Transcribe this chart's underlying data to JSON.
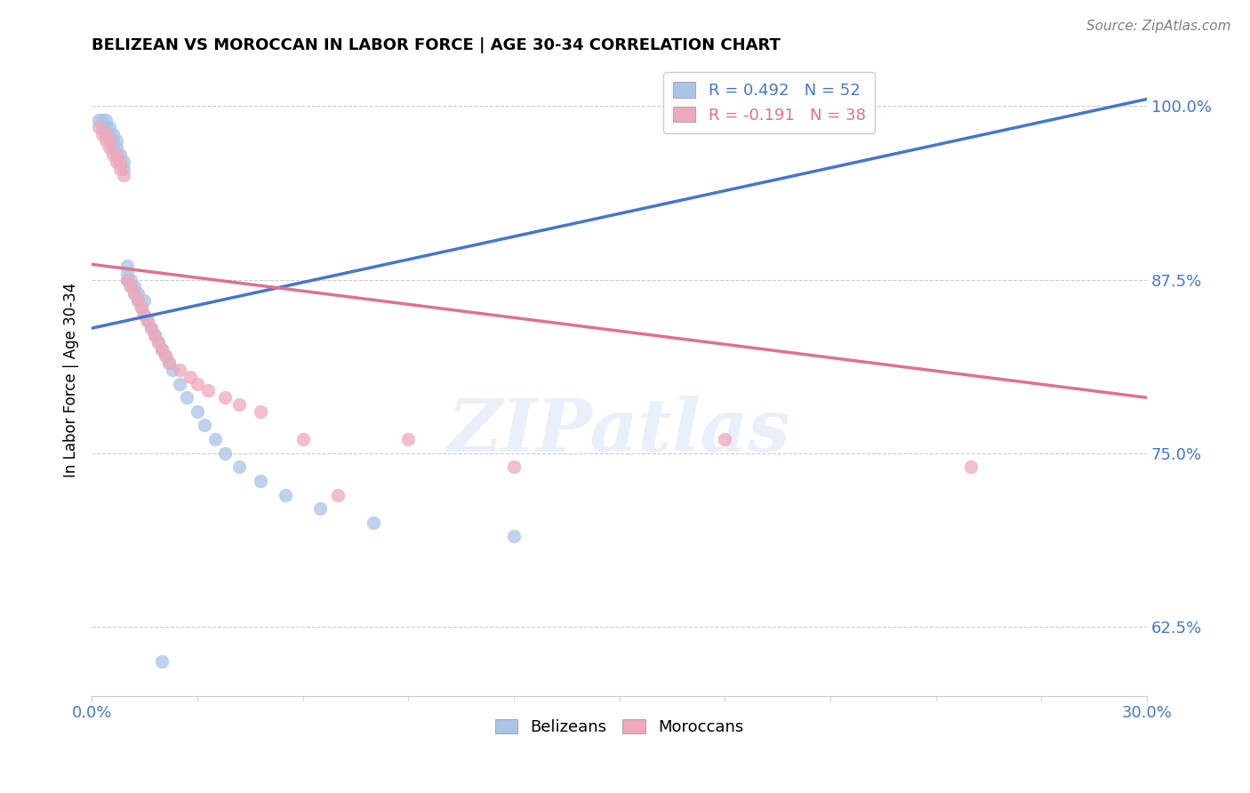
{
  "title": "BELIZEAN VS MOROCCAN IN LABOR FORCE | AGE 30-34 CORRELATION CHART",
  "source_text": "Source: ZipAtlas.com",
  "ylabel_label": "In Labor Force | Age 30-34",
  "xlim": [
    0.0,
    0.3
  ],
  "ylim": [
    0.575,
    1.03
  ],
  "ytick_vals": [
    0.625,
    0.75,
    0.875,
    1.0
  ],
  "ytick_labels": [
    "62.5%",
    "75.0%",
    "87.5%",
    "100.0%"
  ],
  "xtick_vals": [
    0.0,
    0.3
  ],
  "xtick_labels": [
    "0.0%",
    "30.0%"
  ],
  "belizean_R": 0.492,
  "belizean_N": 52,
  "moroccan_R": -0.191,
  "moroccan_N": 38,
  "belizean_color": "#aac4e8",
  "moroccan_color": "#f0a8bc",
  "blue_line_color": "#4477cc",
  "pink_line_color": "#e07090",
  "belizean_points_x": [
    0.002,
    0.003,
    0.003,
    0.004,
    0.004,
    0.004,
    0.005,
    0.005,
    0.005,
    0.006,
    0.006,
    0.006,
    0.007,
    0.007,
    0.007,
    0.008,
    0.008,
    0.009,
    0.009,
    0.01,
    0.01,
    0.01,
    0.011,
    0.011,
    0.012,
    0.012,
    0.013,
    0.013,
    0.014,
    0.015,
    0.015,
    0.016,
    0.017,
    0.018,
    0.019,
    0.02,
    0.021,
    0.022,
    0.023,
    0.025,
    0.027,
    0.03,
    0.032,
    0.035,
    0.038,
    0.042,
    0.048,
    0.055,
    0.065,
    0.08,
    0.12,
    0.02
  ],
  "belizean_points_y": [
    0.99,
    0.985,
    0.99,
    0.98,
    0.985,
    0.99,
    0.975,
    0.98,
    0.985,
    0.97,
    0.975,
    0.98,
    0.965,
    0.97,
    0.975,
    0.96,
    0.965,
    0.955,
    0.96,
    0.875,
    0.88,
    0.885,
    0.87,
    0.875,
    0.865,
    0.87,
    0.86,
    0.865,
    0.855,
    0.85,
    0.86,
    0.845,
    0.84,
    0.835,
    0.83,
    0.825,
    0.82,
    0.815,
    0.81,
    0.8,
    0.79,
    0.78,
    0.77,
    0.76,
    0.75,
    0.74,
    0.73,
    0.72,
    0.71,
    0.7,
    0.69,
    0.6
  ],
  "moroccan_points_x": [
    0.002,
    0.003,
    0.004,
    0.004,
    0.005,
    0.005,
    0.006,
    0.007,
    0.007,
    0.008,
    0.008,
    0.009,
    0.01,
    0.011,
    0.012,
    0.013,
    0.014,
    0.015,
    0.016,
    0.017,
    0.018,
    0.019,
    0.02,
    0.021,
    0.022,
    0.025,
    0.028,
    0.03,
    0.033,
    0.038,
    0.042,
    0.048,
    0.06,
    0.07,
    0.09,
    0.12,
    0.18,
    0.25
  ],
  "moroccan_points_y": [
    0.985,
    0.98,
    0.975,
    0.98,
    0.97,
    0.975,
    0.965,
    0.96,
    0.965,
    0.955,
    0.96,
    0.95,
    0.875,
    0.87,
    0.865,
    0.86,
    0.855,
    0.85,
    0.845,
    0.84,
    0.835,
    0.83,
    0.825,
    0.82,
    0.815,
    0.81,
    0.805,
    0.8,
    0.795,
    0.79,
    0.785,
    0.78,
    0.76,
    0.72,
    0.76,
    0.74,
    0.76,
    0.74
  ],
  "blue_line_x0": 0.0,
  "blue_line_y0": 0.84,
  "blue_line_x1": 0.3,
  "blue_line_y1": 1.005,
  "pink_line_x0": 0.0,
  "pink_line_y0": 0.886,
  "pink_line_x1": 0.3,
  "pink_line_y1": 0.79
}
